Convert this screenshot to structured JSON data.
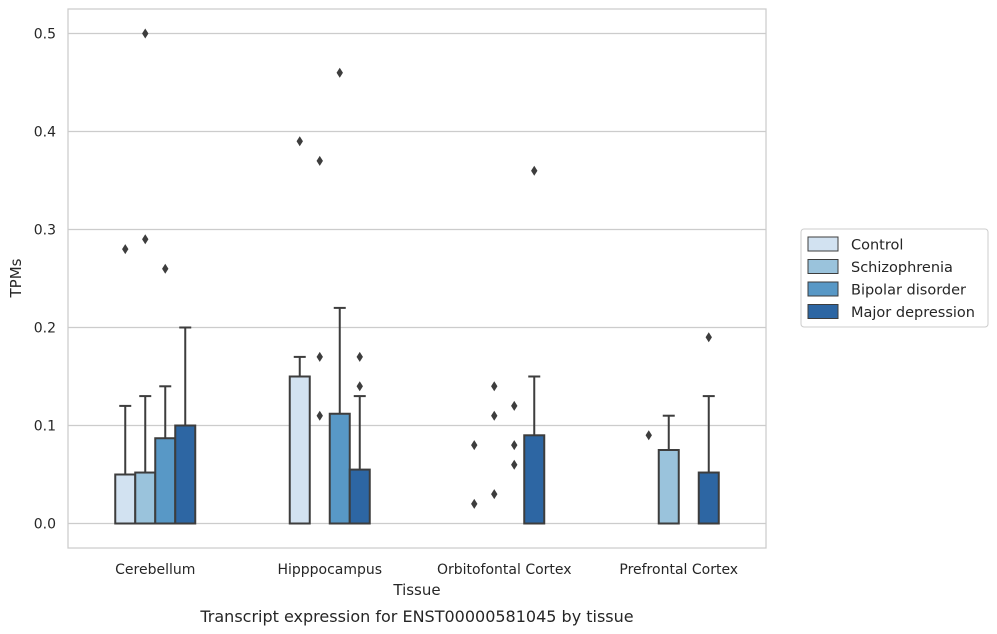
{
  "chart_data": {
    "type": "bar",
    "subtype": "grouped-bar-with-box-whiskers-and-outliers",
    "caption": "Transcript expression for ENST00000581045 by tissue",
    "xlabel": "Tissue",
    "ylabel": "TPMs",
    "ylim": [
      -0.025,
      0.525
    ],
    "yticks": [
      0.0,
      0.1,
      0.2,
      0.3,
      0.4,
      0.5
    ],
    "ytick_labels": [
      "0.0",
      "0.1",
      "0.2",
      "0.3",
      "0.4",
      "0.5"
    ],
    "grid": true,
    "legend_position": "right",
    "categories": [
      "Cerebellum",
      "Hipppocampus",
      "Orbitofontal Cortex",
      "Prefrontal Cortex"
    ],
    "series": [
      {
        "name": "Control",
        "color": "#d2e2f1",
        "values": [
          0.05,
          0.15,
          0.0,
          0.0
        ],
        "whisker_top": [
          0.12,
          0.17,
          null,
          null
        ],
        "outliers": [
          [
            0.28
          ],
          [
            0.39
          ],
          [
            0.02,
            0.08
          ],
          [
            0.09
          ]
        ]
      },
      {
        "name": "Schizophrenia",
        "color": "#9ac3dc",
        "values": [
          0.052,
          0.0,
          0.0,
          0.075
        ],
        "whisker_top": [
          0.13,
          null,
          null,
          0.11
        ],
        "outliers": [
          [
            0.29,
            0.5
          ],
          [
            0.11,
            0.17,
            0.37
          ],
          [
            0.03,
            0.11,
            0.14
          ],
          []
        ]
      },
      {
        "name": "Bipolar disorder",
        "color": "#5898c6",
        "values": [
          0.087,
          0.112,
          0.0,
          0.0
        ],
        "whisker_top": [
          0.14,
          0.22,
          null,
          null
        ],
        "outliers": [
          [
            0.26
          ],
          [
            0.46
          ],
          [
            0.06,
            0.08,
            0.12
          ],
          []
        ]
      },
      {
        "name": "Major depression",
        "color": "#2d66a3",
        "values": [
          0.1,
          0.055,
          0.09,
          0.052
        ],
        "whisker_top": [
          0.2,
          0.13,
          0.15,
          0.13
        ],
        "outliers": [
          [],
          [
            0.14,
            0.17
          ],
          [
            0.36
          ],
          [
            0.19
          ]
        ]
      }
    ]
  }
}
